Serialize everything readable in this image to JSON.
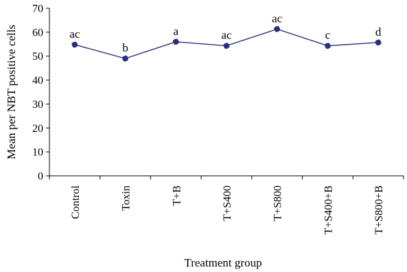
{
  "chart_data": {
    "type": "line",
    "xlabel": "Treatment group",
    "ylabel": "Mean per NBT positive cells",
    "ylim": [
      0,
      70
    ],
    "yticks": [
      0,
      10,
      20,
      30,
      40,
      50,
      60,
      70
    ],
    "categories": [
      "Control",
      "Toxin",
      "T+B",
      "T+S400",
      "T+S800",
      "T+S400+B",
      "T+S800+B"
    ],
    "series": [
      {
        "values": [
          54.8,
          49.0,
          56.0,
          54.3,
          61.3,
          54.3,
          55.7
        ],
        "point_labels": [
          "ac",
          "b",
          "a",
          "ac",
          "ac",
          "c",
          "d"
        ],
        "color": "#2b2f7a"
      }
    ],
    "grid": false,
    "legend": "none"
  }
}
